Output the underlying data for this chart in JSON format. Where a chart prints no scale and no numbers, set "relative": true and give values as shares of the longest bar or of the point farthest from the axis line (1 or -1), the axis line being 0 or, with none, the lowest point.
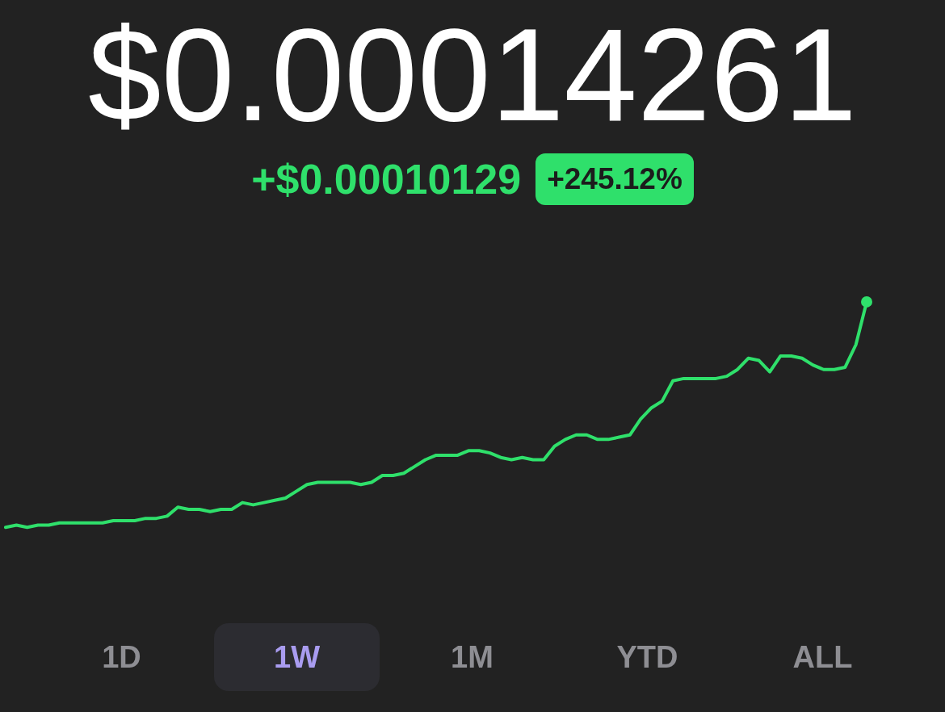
{
  "chart_data": {
    "type": "line",
    "title": "$0.00014261",
    "subtitle": "+$0.00010129",
    "annotations": [
      "+245.12%",
      "1D",
      "1W",
      "1M",
      "YTD",
      "ALL"
    ],
    "relative": true,
    "grid": false,
    "legend": false,
    "categories": [
      null,
      null,
      null,
      null,
      null,
      null,
      null,
      null,
      null,
      null,
      null,
      null,
      null,
      null,
      null,
      null,
      null,
      null,
      null,
      null,
      null,
      null,
      null,
      null,
      null,
      null,
      null,
      null,
      null,
      null,
      null,
      null,
      null,
      null,
      null,
      null,
      null,
      null,
      null,
      null,
      null,
      null,
      null,
      null,
      null,
      null,
      null,
      null,
      null,
      null,
      null,
      null,
      null,
      null,
      null,
      null,
      null,
      null,
      null,
      null,
      null,
      null,
      null,
      null,
      null,
      null,
      null,
      null,
      null,
      null,
      null,
      null,
      null,
      null,
      null,
      null,
      null,
      null,
      null,
      null,
      null
    ],
    "series": [
      {
        "color": "#2fe06b",
        "values": [
          0,
          0.01,
          0,
          0.01,
          0.01,
          0.02,
          0.02,
          0.02,
          0.02,
          0.02,
          0.03,
          0.03,
          0.03,
          0.04,
          0.04,
          0.05,
          0.09,
          0.08,
          0.08,
          0.07,
          0.08,
          0.08,
          0.11,
          0.1,
          0.11,
          0.12,
          0.13,
          0.16,
          0.19,
          0.2,
          0.2,
          0.2,
          0.2,
          0.19,
          0.2,
          0.23,
          0.23,
          0.24,
          0.27,
          0.3,
          0.32,
          0.32,
          0.32,
          0.34,
          0.34,
          0.33,
          0.31,
          0.3,
          0.31,
          0.3,
          0.3,
          0.36,
          0.39,
          0.41,
          0.41,
          0.39,
          0.39,
          0.4,
          0.41,
          0.48,
          0.53,
          0.56,
          0.65,
          0.66,
          0.66,
          0.66,
          0.66,
          0.67,
          0.7,
          0.75,
          0.74,
          0.69,
          0.76,
          0.76,
          0.75,
          0.72,
          0.7,
          0.7,
          0.71,
          0.81,
          1
        ]
      }
    ]
  }
}
